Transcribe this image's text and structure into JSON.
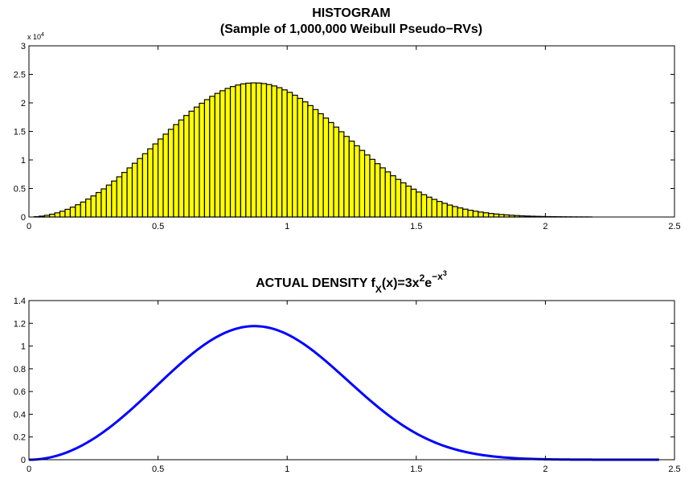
{
  "chart_data": [
    {
      "type": "bar",
      "title_line1": "HISTOGRAM",
      "title_line2": "(Sample of 1,000,000 Weibull Pseudo−RVs)",
      "xlabel": "",
      "ylabel": "",
      "xlim": [
        0,
        2.5
      ],
      "ylim": [
        0,
        30000
      ],
      "x_ticks": [
        0,
        0.5,
        1,
        1.5,
        2,
        2.5
      ],
      "x_tick_labels": [
        "0",
        "0.5",
        "1",
        "1.5",
        "2",
        "2.5"
      ],
      "y_ticks": [
        0,
        5000,
        10000,
        15000,
        20000,
        25000,
        30000
      ],
      "y_tick_labels": [
        "0",
        "0.5",
        "1",
        "1.5",
        "2",
        "2.5",
        "3"
      ],
      "y_exponent_label": "x 10",
      "y_exponent_power": "4",
      "bar_color": "#ffff00",
      "edge_color": "#000000",
      "bin_width": 0.02,
      "grid": false
    },
    {
      "type": "line",
      "title_prefix": "ACTUAL DENSITY f",
      "title_sub": "X",
      "title_mid": "(x)=3x",
      "title_sup1": "2",
      "title_e": "e",
      "title_sup2": "−x",
      "title_sup3": "3",
      "xlabel": "",
      "ylabel": "",
      "xlim": [
        0,
        2.5
      ],
      "ylim": [
        0,
        1.4
      ],
      "x_ticks": [
        0,
        0.5,
        1,
        1.5,
        2,
        2.5
      ],
      "x_tick_labels": [
        "0",
        "0.5",
        "1",
        "1.5",
        "2",
        "2.5"
      ],
      "y_ticks": [
        0,
        0.2,
        0.4,
        0.6,
        0.8,
        1,
        1.2,
        1.4
      ],
      "y_tick_labels": [
        "0",
        "0.2",
        "0.4",
        "0.6",
        "0.8",
        "1",
        "1.2",
        "1.4"
      ],
      "x_range": [
        0,
        2.44
      ],
      "line_color": "#0000ff",
      "grid": false
    }
  ]
}
